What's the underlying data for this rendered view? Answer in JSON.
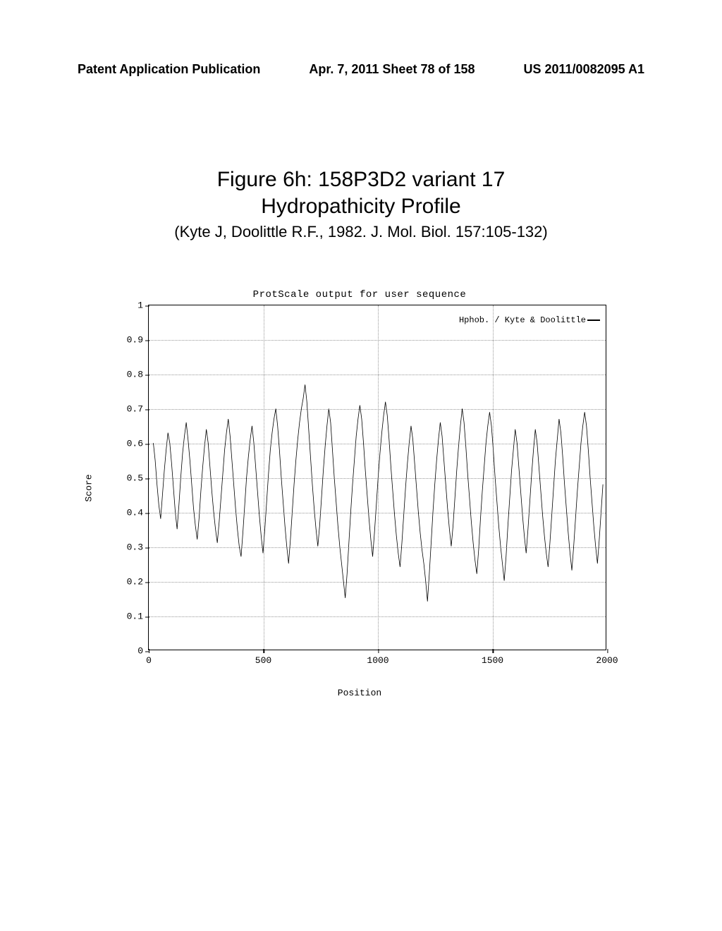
{
  "header": {
    "left": "Patent Application Publication",
    "center": "Apr. 7, 2011  Sheet 78 of 158",
    "right": "US 2011/0082095 A1"
  },
  "figure": {
    "title_line1": "Figure 6h: 158P3D2 variant 17",
    "title_line2": "Hydropathicity Profile",
    "citation": "(Kyte J, Doolittle R.F., 1982.  J. Mol. Biol. 157:105-132)"
  },
  "chart": {
    "type": "line",
    "super_title": "ProtScale output for user sequence",
    "y_label": "Score",
    "x_label": "Position",
    "legend": "Hphob. / Kyte & Doolittle",
    "xlim": [
      0,
      2000
    ],
    "ylim": [
      0,
      1
    ],
    "x_ticks": [
      0,
      500,
      1000,
      1500,
      2000
    ],
    "y_ticks": [
      0,
      0.1,
      0.2,
      0.3,
      0.4,
      0.5,
      0.6,
      0.7,
      0.8,
      0.9,
      1
    ],
    "y_tick_labels": [
      "0",
      "0.1",
      "0.2",
      "0.3",
      "0.4",
      "0.5",
      "0.6",
      "0.7",
      "0.8",
      "0.9",
      "1"
    ],
    "grid_color": "#555555",
    "border_color": "#000000",
    "background_color": "#ffffff",
    "line_color": "#000000",
    "line_width": 0.8,
    "label_font": "Courier New",
    "label_fontsize": 13,
    "data_x_start": 20,
    "data_x_end": 1990,
    "data_step": 8,
    "data_y": [
      0.6,
      0.55,
      0.48,
      0.42,
      0.38,
      0.45,
      0.52,
      0.58,
      0.63,
      0.6,
      0.54,
      0.47,
      0.4,
      0.35,
      0.42,
      0.5,
      0.57,
      0.62,
      0.66,
      0.61,
      0.55,
      0.48,
      0.41,
      0.36,
      0.32,
      0.38,
      0.46,
      0.53,
      0.59,
      0.64,
      0.6,
      0.53,
      0.46,
      0.4,
      0.35,
      0.31,
      0.37,
      0.44,
      0.51,
      0.58,
      0.63,
      0.67,
      0.62,
      0.55,
      0.48,
      0.41,
      0.35,
      0.3,
      0.27,
      0.34,
      0.42,
      0.5,
      0.56,
      0.61,
      0.65,
      0.6,
      0.53,
      0.46,
      0.39,
      0.33,
      0.28,
      0.35,
      0.43,
      0.51,
      0.58,
      0.63,
      0.67,
      0.7,
      0.65,
      0.58,
      0.5,
      0.43,
      0.36,
      0.3,
      0.25,
      0.32,
      0.4,
      0.48,
      0.55,
      0.61,
      0.66,
      0.7,
      0.73,
      0.77,
      0.72,
      0.64,
      0.56,
      0.48,
      0.41,
      0.35,
      0.3,
      0.36,
      0.44,
      0.52,
      0.59,
      0.65,
      0.7,
      0.66,
      0.58,
      0.5,
      0.43,
      0.36,
      0.3,
      0.25,
      0.2,
      0.15,
      0.22,
      0.31,
      0.4,
      0.48,
      0.55,
      0.62,
      0.67,
      0.71,
      0.67,
      0.6,
      0.52,
      0.45,
      0.38,
      0.32,
      0.27,
      0.34,
      0.42,
      0.5,
      0.57,
      0.63,
      0.68,
      0.72,
      0.68,
      0.61,
      0.53,
      0.46,
      0.39,
      0.33,
      0.28,
      0.24,
      0.31,
      0.39,
      0.47,
      0.54,
      0.6,
      0.65,
      0.61,
      0.54,
      0.47,
      0.4,
      0.34,
      0.29,
      0.25,
      0.2,
      0.14,
      0.22,
      0.31,
      0.4,
      0.48,
      0.55,
      0.61,
      0.66,
      0.62,
      0.55,
      0.48,
      0.41,
      0.35,
      0.3,
      0.36,
      0.44,
      0.52,
      0.59,
      0.65,
      0.7,
      0.66,
      0.59,
      0.51,
      0.44,
      0.37,
      0.31,
      0.26,
      0.22,
      0.29,
      0.38,
      0.46,
      0.53,
      0.6,
      0.65,
      0.69,
      0.65,
      0.58,
      0.5,
      0.43,
      0.36,
      0.3,
      0.25,
      0.2,
      0.27,
      0.36,
      0.44,
      0.52,
      0.58,
      0.64,
      0.6,
      0.53,
      0.46,
      0.39,
      0.33,
      0.28,
      0.35,
      0.43,
      0.51,
      0.58,
      0.64,
      0.6,
      0.53,
      0.46,
      0.39,
      0.33,
      0.28,
      0.24,
      0.31,
      0.39,
      0.47,
      0.55,
      0.61,
      0.67,
      0.63,
      0.56,
      0.48,
      0.41,
      0.34,
      0.28,
      0.23,
      0.3,
      0.38,
      0.46,
      0.53,
      0.6,
      0.65,
      0.69,
      0.65,
      0.58,
      0.5,
      0.43,
      0.36,
      0.3,
      0.25,
      0.32,
      0.4,
      0.48,
      0.55,
      0.61,
      0.66,
      0.7,
      0.73,
      0.93,
      0.6,
      0.2,
      0.07
    ]
  }
}
